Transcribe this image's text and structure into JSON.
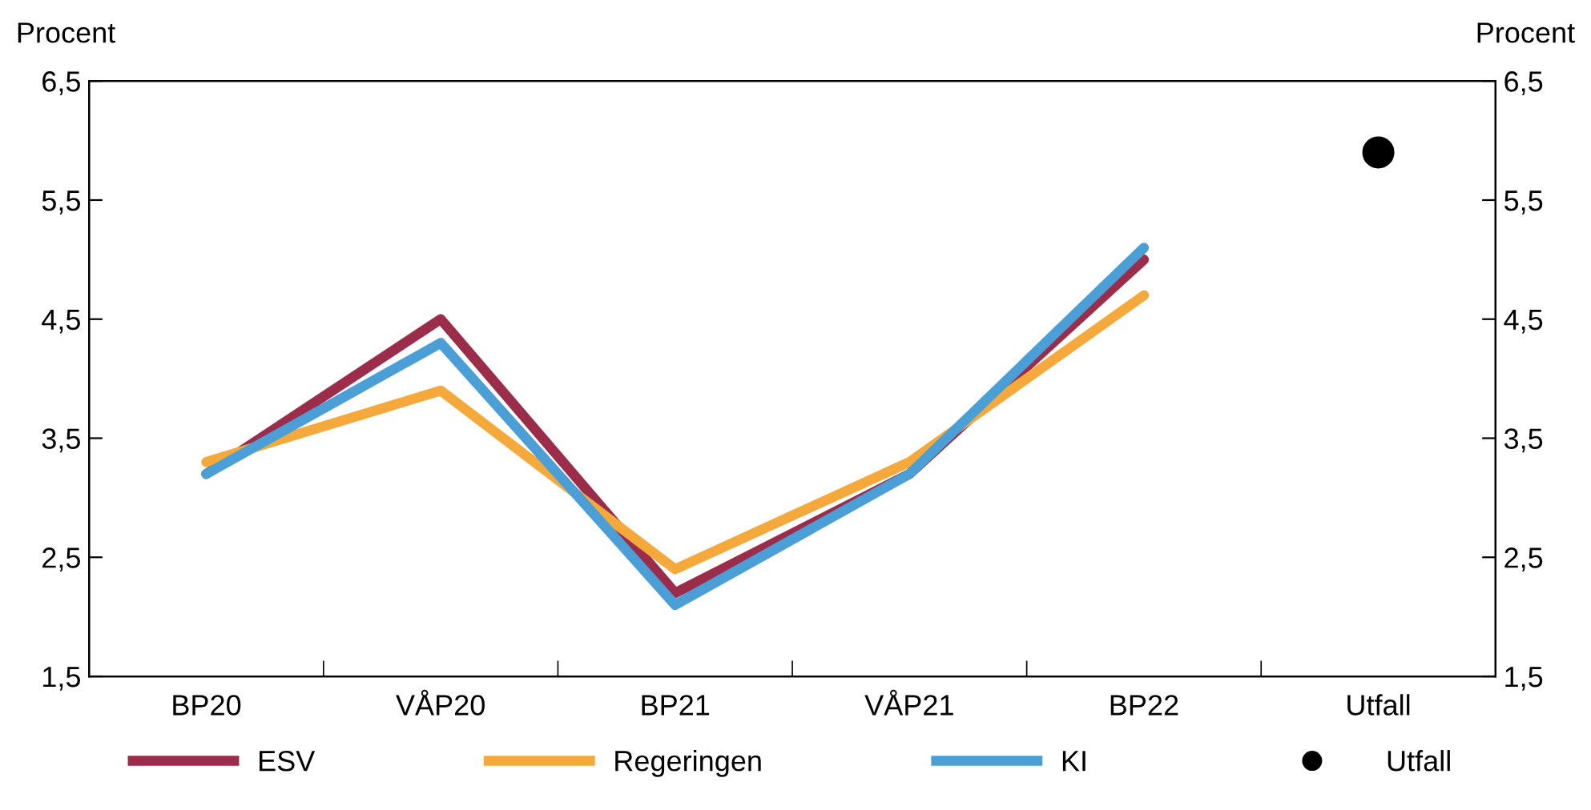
{
  "chart_data": {
    "type": "line",
    "categories": [
      "BP20",
      "VÅP20",
      "BP21",
      "VÅP21",
      "BP22",
      "Utfall"
    ],
    "ylabel": "Procent",
    "y2label": "Procent",
    "ylim": [
      1.5,
      6.5
    ],
    "yticks": [
      {
        "value": 1.5,
        "label": "1,5"
      },
      {
        "value": 2.5,
        "label": "2,5"
      },
      {
        "value": 3.5,
        "label": "3,5"
      },
      {
        "value": 4.5,
        "label": "4,5"
      },
      {
        "value": 5.5,
        "label": "5,5"
      },
      {
        "value": 6.5,
        "label": "6,5"
      }
    ],
    "y2lim": [
      1.5,
      6.5
    ],
    "y2ticks": [
      {
        "value": 1.5,
        "label": "1,5"
      },
      {
        "value": 2.5,
        "label": "2,5"
      },
      {
        "value": 3.5,
        "label": "3,5"
      },
      {
        "value": 4.5,
        "label": "4,5"
      },
      {
        "value": 5.5,
        "label": "5,5"
      },
      {
        "value": 6.5,
        "label": "6,5"
      }
    ],
    "series": [
      {
        "name": "ESV",
        "color": "#9b2d4a",
        "values": [
          3.2,
          4.5,
          2.2,
          3.2,
          5.0,
          null
        ]
      },
      {
        "name": "Regeringen",
        "color": "#f5a93a",
        "values": [
          3.3,
          3.9,
          2.4,
          3.3,
          4.7,
          null
        ]
      },
      {
        "name": "KI",
        "color": "#4a9fd6",
        "values": [
          3.2,
          4.3,
          2.1,
          3.2,
          5.1,
          null
        ]
      },
      {
        "name": "Utfall",
        "type": "scatter",
        "marker": "circle",
        "color": "#000000",
        "values": [
          null,
          null,
          null,
          null,
          null,
          5.9
        ]
      }
    ],
    "grid": false,
    "legend": "bottom"
  }
}
